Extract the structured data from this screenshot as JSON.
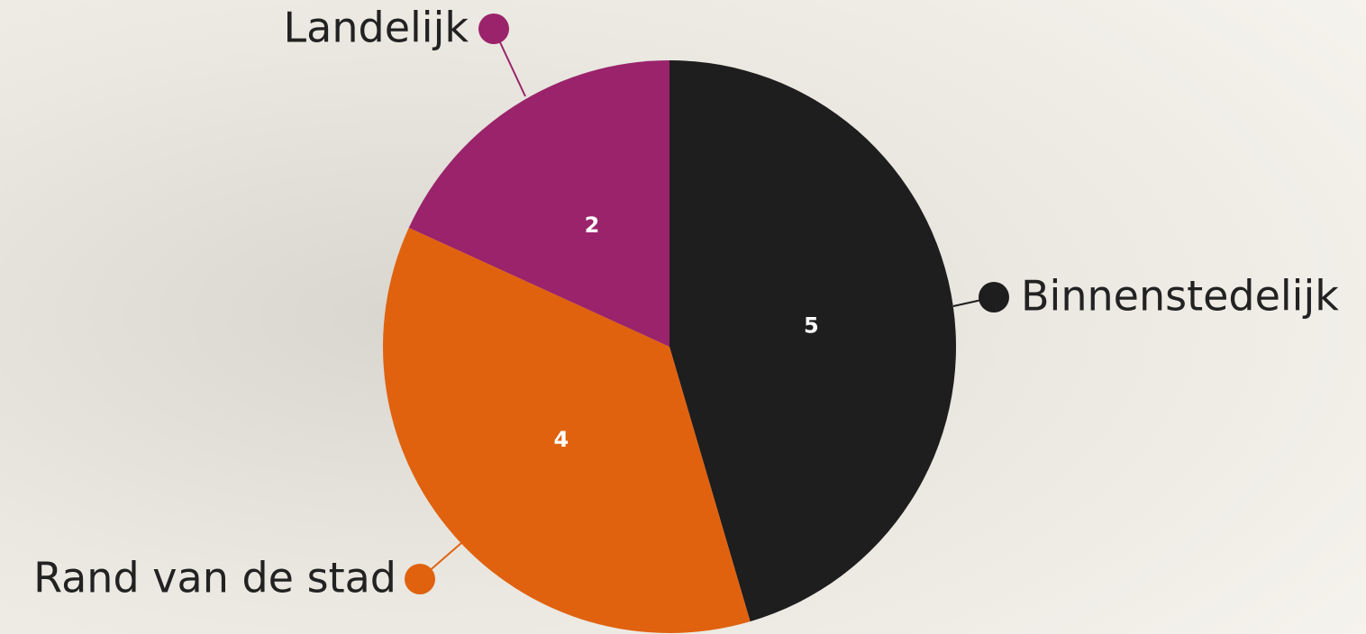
{
  "chart_data": {
    "type": "pie",
    "categories": [
      "Binnenstedelijk",
      "Rand van de stad",
      "Landelijk"
    ],
    "values": [
      5,
      4,
      2
    ],
    "colors": [
      "#1e1e1e",
      "#e0620f",
      "#9a236b"
    ]
  }
}
